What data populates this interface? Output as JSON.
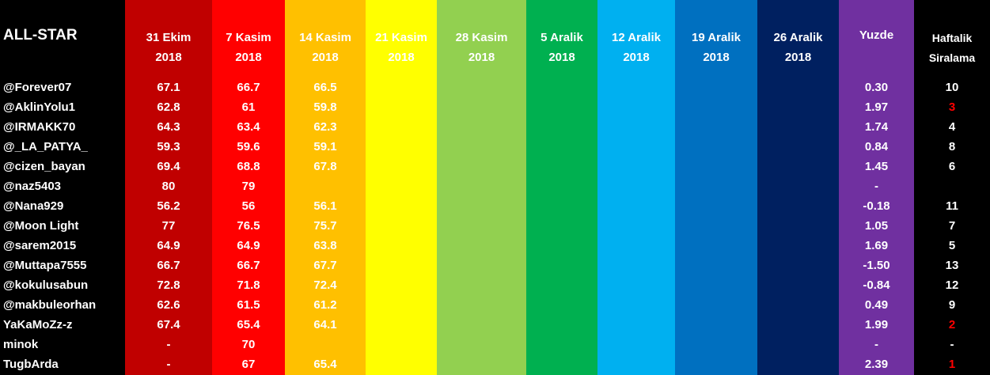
{
  "header": {
    "title": "ALL-STAR"
  },
  "columns": [
    {
      "lines": [
        "31 Ekim",
        "2018"
      ],
      "color": "#c00000"
    },
    {
      "lines": [
        "7 Kasim",
        "2018"
      ],
      "color": "#ff0000"
    },
    {
      "lines": [
        "14 Kasim",
        "2018"
      ],
      "color": "#ffc000"
    },
    {
      "lines": [
        "21 Kasim",
        "2018"
      ],
      "color": "#ffff00"
    },
    {
      "lines": [
        "28 Kasim",
        "2018"
      ],
      "color": "#92d050"
    },
    {
      "lines": [
        "5 Aralik",
        "2018"
      ],
      "color": "#00b050"
    },
    {
      "lines": [
        "12 Aralik",
        "2018"
      ],
      "color": "#00b0f0"
    },
    {
      "lines": [
        "19 Aralik",
        "2018"
      ],
      "color": "#0070c0"
    },
    {
      "lines": [
        "26 Aralik",
        "2018"
      ],
      "color": "#002060"
    },
    {
      "lines": [
        "Yuzde"
      ],
      "color": "#7030a0"
    },
    {
      "lines": [
        "Haftalik",
        "Siralama"
      ],
      "color": "#000000"
    }
  ],
  "rank_highlight_color": "#ff0000",
  "rows": [
    {
      "name": "@Forever07",
      "scores": [
        "67.1",
        "66.7",
        "66.5"
      ],
      "yuzde": "0.30",
      "rank": "10"
    },
    {
      "name": "@AklinYolu1",
      "scores": [
        "62.8",
        "61",
        "59.8"
      ],
      "yuzde": "1.97",
      "rank": "3",
      "rank_highlight": true
    },
    {
      "name": "@IRMAKK70",
      "scores": [
        "64.3",
        "63.4",
        "62.3"
      ],
      "yuzde": "1.74",
      "rank": "4"
    },
    {
      "name": "@_LA_PATYA_",
      "scores": [
        "59.3",
        "59.6",
        "59.1"
      ],
      "yuzde": "0.84",
      "rank": "8"
    },
    {
      "name": "@cizen_bayan",
      "scores": [
        "69.4",
        "68.8",
        "67.8"
      ],
      "yuzde": "1.45",
      "rank": "6"
    },
    {
      "name": "@naz5403",
      "scores": [
        "80",
        "79"
      ],
      "yuzde": "-"
    },
    {
      "name": "@Nana929",
      "scores": [
        "56.2",
        "56",
        "56.1"
      ],
      "yuzde": "-0.18",
      "rank": "11"
    },
    {
      "name": "@Moon Light",
      "scores": [
        "77",
        "76.5",
        "75.7"
      ],
      "yuzde": "1.05",
      "rank": "7"
    },
    {
      "name": "@sarem2015",
      "scores": [
        "64.9",
        "64.9",
        "63.8"
      ],
      "yuzde": "1.69",
      "rank": "5"
    },
    {
      "name": "@Muttapa7555",
      "scores": [
        "66.7",
        "66.7",
        "67.7"
      ],
      "yuzde": "-1.50",
      "rank": "13"
    },
    {
      "name": "@kokulusabun",
      "scores": [
        "72.8",
        "71.8",
        "72.4"
      ],
      "yuzde": "-0.84",
      "rank": "12"
    },
    {
      "name": "@makbuleorhan",
      "scores": [
        "62.6",
        "61.5",
        "61.2"
      ],
      "yuzde": "0.49",
      "rank": "9"
    },
    {
      "name": "YaKaMoZz-z",
      "scores": [
        "67.4",
        "65.4",
        "64.1"
      ],
      "yuzde": "1.99",
      "rank": "2",
      "rank_highlight": true
    },
    {
      "name": "minok",
      "scores": [
        "-",
        "70"
      ],
      "yuzde": "-",
      "rank": "-"
    },
    {
      "name": "TugbArda",
      "scores": [
        "-",
        "67",
        "65.4"
      ],
      "yuzde": "2.39",
      "rank": "1",
      "rank_highlight": true
    }
  ]
}
